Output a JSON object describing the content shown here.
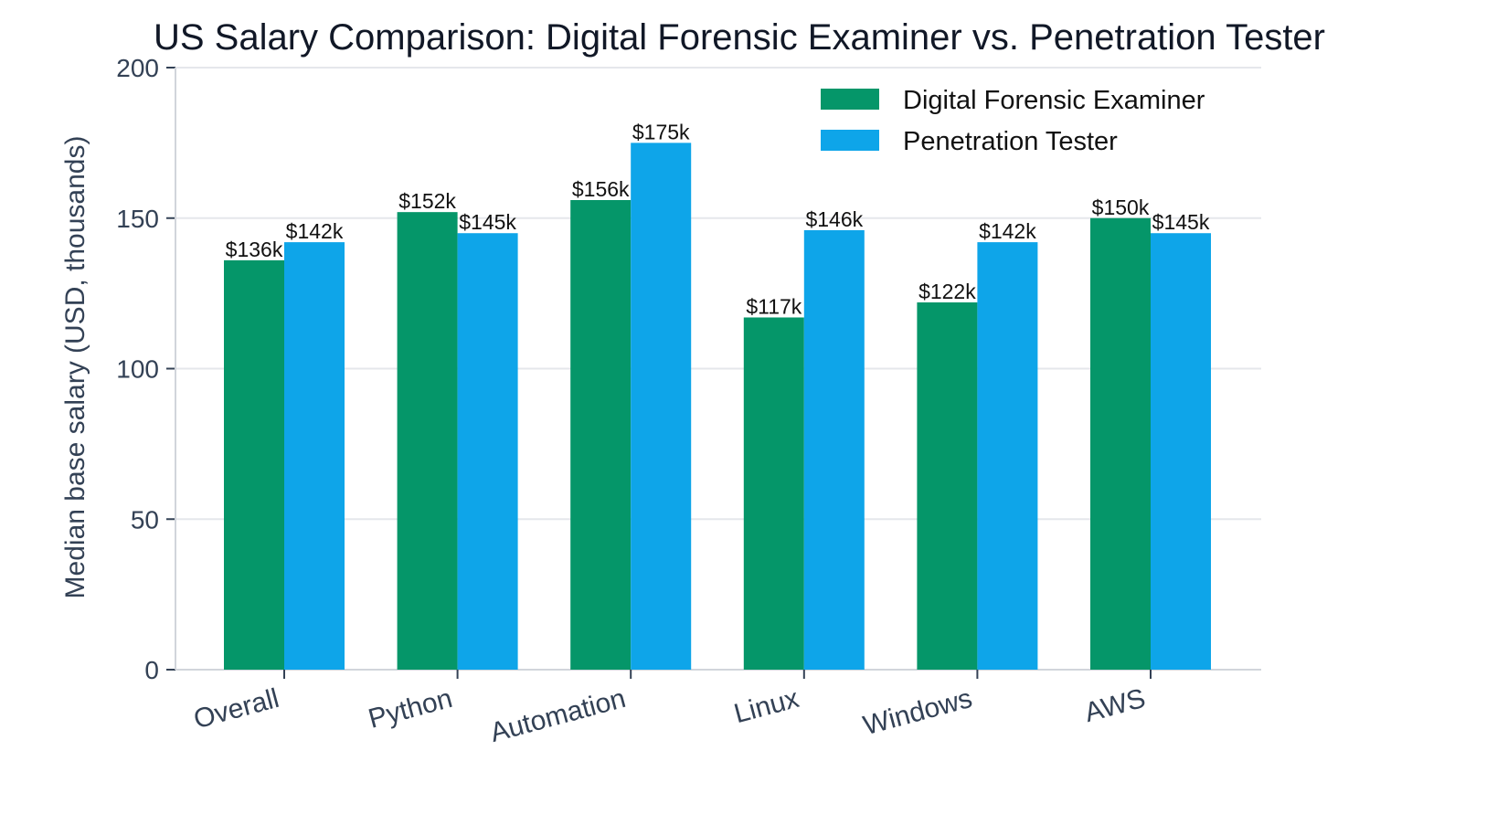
{
  "colors": {
    "series_1": "#059669",
    "series_2": "#0ea5e9"
  },
  "chart_data": {
    "type": "bar",
    "title": "US Salary Comparison: Digital Forensic Examiner vs. Penetration Tester",
    "xlabel": "",
    "ylabel": "Median base salary (USD, thousands)",
    "ylim": [
      0,
      200
    ],
    "yticks": [
      0,
      50,
      100,
      150,
      200
    ],
    "grid": "horizontal",
    "legend_position": "top-right",
    "categories": [
      "Overall",
      "Python",
      "Automation",
      "Linux",
      "Windows",
      "AWS"
    ],
    "series": [
      {
        "name": "Digital Forensic Examiner",
        "values": [
          136,
          152,
          156,
          117,
          122,
          150
        ],
        "labels": [
          "$136k",
          "$152k",
          "$156k",
          "$117k",
          "$122k",
          "$150k"
        ]
      },
      {
        "name": "Penetration Tester",
        "values": [
          142,
          145,
          175,
          146,
          142,
          145
        ],
        "labels": [
          "$142k",
          "$145k",
          "$175k",
          "$146k",
          "$142k",
          "$145k"
        ]
      }
    ]
  }
}
